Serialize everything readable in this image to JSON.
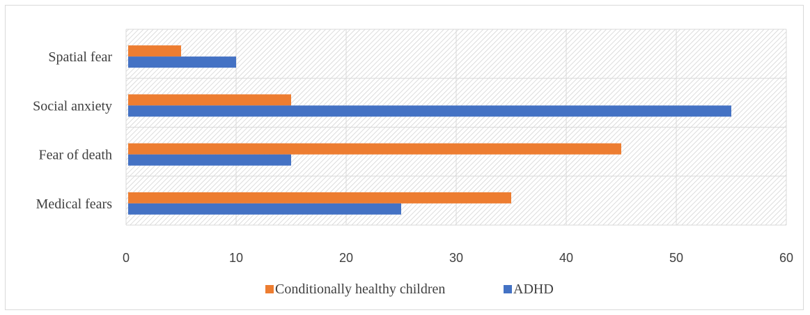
{
  "chart_data": {
    "type": "bar",
    "orientation": "horizontal",
    "categories": [
      "Spatial fear",
      "Social anxiety",
      "Fear of death",
      "Medical fears"
    ],
    "series": [
      {
        "name": "Conditionally healthy children",
        "color": "#ed7d31",
        "values": [
          5,
          15,
          45,
          35
        ]
      },
      {
        "name": "ADHD",
        "color": "#4472c4",
        "values": [
          10,
          55,
          15,
          25
        ]
      }
    ],
    "xlim": [
      0,
      60
    ],
    "xticks": [
      "0",
      "10",
      "20",
      "30",
      "40",
      "50",
      "60"
    ],
    "title": "",
    "xlabel": "",
    "ylabel": "",
    "grid": true,
    "plot_background": "hatched",
    "legend_position": "bottom"
  }
}
